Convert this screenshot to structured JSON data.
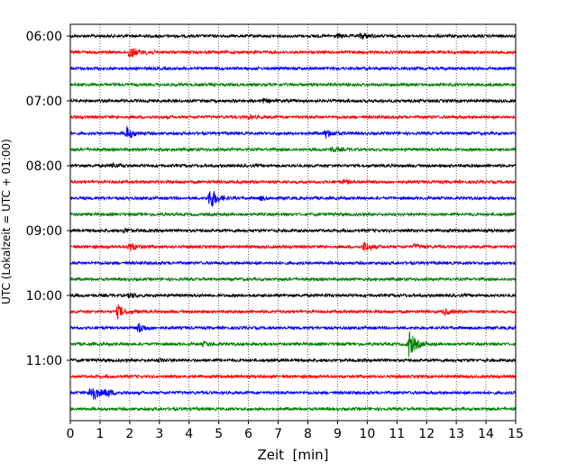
{
  "chart_data": {
    "type": "line",
    "title": "",
    "xlabel": "Zeit  [min]",
    "ylabel": "UTC (Lokalzeit = UTC + 01:00)",
    "xlim": [
      0,
      15
    ],
    "x_ticks": [
      "0",
      "1",
      "2",
      "3",
      "4",
      "5",
      "6",
      "7",
      "8",
      "9",
      "10",
      "11",
      "12",
      "13",
      "14",
      "15"
    ],
    "y_tick_labels": [
      "06:00",
      "07:00",
      "08:00",
      "09:00",
      "10:00",
      "11:00"
    ],
    "grid": "vertical dotted",
    "trace_interval_min": 15,
    "trace_colors": [
      "#000000",
      "#ff0000",
      "#0000ff",
      "#008000"
    ],
    "series": [
      {
        "start": "06:00",
        "color": "#000000",
        "events": [
          {
            "t": 9.8,
            "amp": 0.22
          },
          {
            "t": 9.0,
            "amp": 0.1
          }
        ]
      },
      {
        "start": "06:15",
        "color": "#ff0000",
        "events": [
          {
            "t": 2.0,
            "amp": 0.45
          },
          {
            "t": 2.6,
            "amp": 0.12
          }
        ]
      },
      {
        "start": "06:30",
        "color": "#0000ff",
        "events": []
      },
      {
        "start": "06:45",
        "color": "#008000",
        "events": []
      },
      {
        "start": "07:00",
        "color": "#000000",
        "events": [
          {
            "t": 6.5,
            "amp": 0.12
          }
        ]
      },
      {
        "start": "07:15",
        "color": "#ff0000",
        "events": [
          {
            "t": 6.0,
            "amp": 0.12
          }
        ]
      },
      {
        "start": "07:30",
        "color": "#0000ff",
        "events": [
          {
            "t": 1.9,
            "amp": 0.45
          },
          {
            "t": 8.6,
            "amp": 0.3
          }
        ]
      },
      {
        "start": "07:45",
        "color": "#008000",
        "events": [
          {
            "t": 8.8,
            "amp": 0.15
          }
        ]
      },
      {
        "start": "08:00",
        "color": "#000000",
        "events": [
          {
            "t": 1.4,
            "amp": 0.15
          }
        ]
      },
      {
        "start": "08:15",
        "color": "#ff0000",
        "events": [
          {
            "t": 9.2,
            "amp": 0.12
          }
        ]
      },
      {
        "start": "08:30",
        "color": "#0000ff",
        "events": [
          {
            "t": 4.7,
            "amp": 0.85
          },
          {
            "t": 6.4,
            "amp": 0.12
          }
        ]
      },
      {
        "start": "08:45",
        "color": "#008000",
        "events": []
      },
      {
        "start": "09:00",
        "color": "#000000",
        "events": [
          {
            "t": 1.8,
            "amp": 0.12
          }
        ]
      },
      {
        "start": "09:15",
        "color": "#ff0000",
        "events": [
          {
            "t": 2.0,
            "amp": 0.3
          },
          {
            "t": 9.9,
            "amp": 0.35
          },
          {
            "t": 11.6,
            "amp": 0.15
          }
        ]
      },
      {
        "start": "09:30",
        "color": "#0000ff",
        "events": []
      },
      {
        "start": "09:45",
        "color": "#008000",
        "events": []
      },
      {
        "start": "10:00",
        "color": "#000000",
        "events": [
          {
            "t": 2.0,
            "amp": 0.15
          }
        ]
      },
      {
        "start": "10:15",
        "color": "#ff0000",
        "events": [
          {
            "t": 1.6,
            "amp": 0.45
          },
          {
            "t": 12.6,
            "amp": 0.2
          }
        ]
      },
      {
        "start": "10:30",
        "color": "#0000ff",
        "events": [
          {
            "t": 2.3,
            "amp": 0.35
          }
        ]
      },
      {
        "start": "10:45",
        "color": "#008000",
        "events": [
          {
            "t": 11.4,
            "amp": 1.0
          },
          {
            "t": 4.5,
            "amp": 0.15
          }
        ]
      },
      {
        "start": "11:00",
        "color": "#000000",
        "events": [
          {
            "t": 3.0,
            "amp": 0.1
          }
        ]
      },
      {
        "start": "11:15",
        "color": "#ff0000",
        "events": []
      },
      {
        "start": "11:30",
        "color": "#0000ff",
        "events": [
          {
            "t": 0.7,
            "amp": 0.75
          },
          {
            "t": 1.2,
            "amp": 0.3
          }
        ]
      },
      {
        "start": "11:45",
        "color": "#008000",
        "events": []
      }
    ]
  }
}
